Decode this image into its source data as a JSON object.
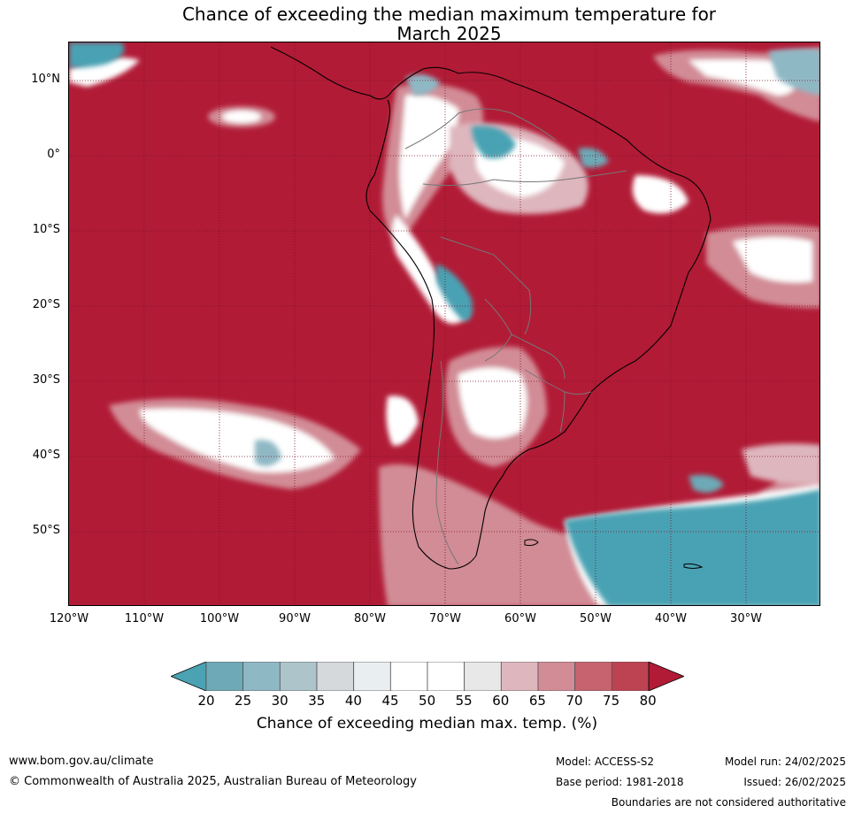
{
  "title_line1": "Chance of exceeding the median maximum temperature for",
  "title_line2": "March 2025",
  "lat_labels": [
    "10°N",
    "0°",
    "10°S",
    "20°S",
    "30°S",
    "40°S",
    "50°S"
  ],
  "lon_labels": [
    "120°W",
    "110°W",
    "100°W",
    "90°W",
    "80°W",
    "70°W",
    "60°W",
    "50°W",
    "40°W",
    "30°W"
  ],
  "colorbar": {
    "ticks": [
      "20",
      "25",
      "30",
      "35",
      "40",
      "45",
      "50",
      "55",
      "60",
      "65",
      "70",
      "75",
      "80"
    ],
    "colors": [
      "#4aa2b3",
      "#6da9b6",
      "#8fb8c5",
      "#adc4cb",
      "#d5d9dc",
      "#e9eff1",
      "#ffffff",
      "#ffffff",
      "#e8e8e8",
      "#deb6bd",
      "#d28c96",
      "#c6636f",
      "#bd4252",
      "#b11b36"
    ],
    "label": "Chance of exceeding median max. temp. (%)"
  },
  "colors": {
    "above": "#b11b36",
    "below": "#4aa2b3",
    "neutral": "#ffffff"
  },
  "footer": {
    "website": "www.bom.gov.au/climate",
    "copyright": "© Commonwealth of Australia 2025, Australian Bureau of Meteorology",
    "model": "Model: ACCESS-S2",
    "base_period": "Base period: 1981-2018",
    "model_run": "Model run: 24/02/2025",
    "issued": "Issued: 26/02/2025",
    "boundaries_note": "Boundaries are not considered authoritative"
  }
}
